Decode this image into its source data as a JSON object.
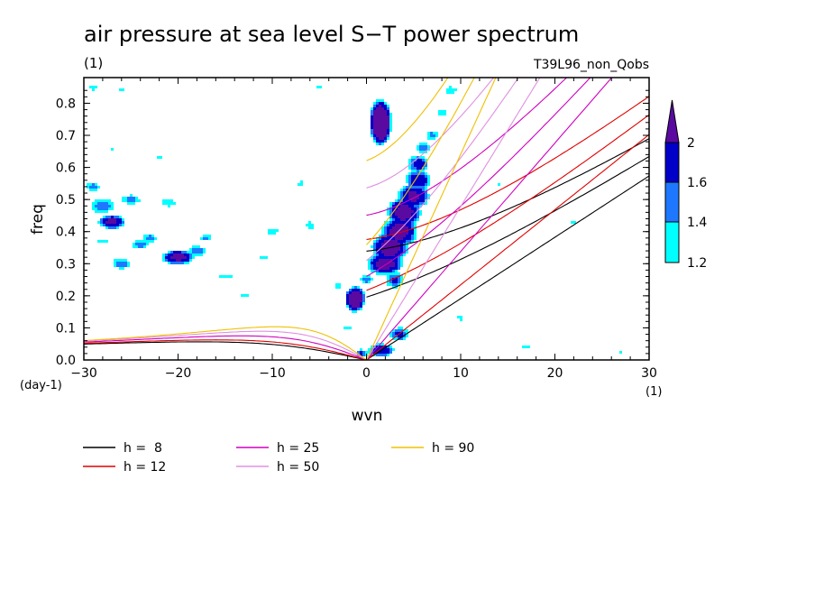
{
  "chart_data": {
    "type": "contour",
    "title": "air pressure at sea level S−T power spectrum",
    "units": "(1)",
    "subtitle": "T39L96_non_Qobs",
    "xlabel": "wvn",
    "ylabel": "freq",
    "x_unit": "(1)",
    "y_unit": "(day-1)",
    "xlim": [
      -30,
      30
    ],
    "ylim": [
      0,
      0.88
    ],
    "x_ticks": [
      -30,
      -20,
      -10,
      0,
      10,
      20,
      30
    ],
    "x_tick_labels": [
      "−30",
      "−20",
      "−10",
      "0",
      "10",
      "20",
      "30"
    ],
    "y_ticks": [
      0,
      0.1,
      0.2,
      0.3,
      0.4,
      0.5,
      0.6,
      0.7,
      0.8
    ],
    "y_tick_labels": [
      "0.0",
      "0.1",
      "0.2",
      "0.3",
      "0.4",
      "0.5",
      "0.6",
      "0.7",
      "0.8"
    ],
    "colorbar": {
      "levels": [
        1.2,
        1.4,
        1.6,
        2
      ],
      "labels": [
        "1.2",
        "1.4",
        "1.6",
        "2"
      ],
      "colors": [
        "#00ffff",
        "#1e78ff",
        "#0000c8",
        "#5a0aa0"
      ]
    },
    "contour_regions": [
      {
        "level": 2,
        "wvn": 1,
        "freq": 0.74
      },
      {
        "level": 2,
        "wvn": -1,
        "freq": 0.19
      },
      {
        "level": 2,
        "wvn": 2,
        "freq": 0.36
      },
      {
        "level": 2,
        "wvn": 4,
        "freq": 0.48
      },
      {
        "level": 1.6,
        "wvn": -20,
        "freq": 0.32
      },
      {
        "level": 1.6,
        "wvn": -27,
        "freq": 0.43
      }
    ],
    "dispersion_curves": [
      {
        "name": "h =  8",
        "color": "#000000",
        "equivalent_depth": 8
      },
      {
        "name": "h = 12",
        "color": "#e00000",
        "equivalent_depth": 12
      },
      {
        "name": "h = 25",
        "color": "#d000c0",
        "equivalent_depth": 25
      },
      {
        "name": "h = 50",
        "color": "#e090e0",
        "equivalent_depth": 50
      },
      {
        "name": "h = 90",
        "color": "#f0c000",
        "equivalent_depth": 90
      }
    ]
  }
}
